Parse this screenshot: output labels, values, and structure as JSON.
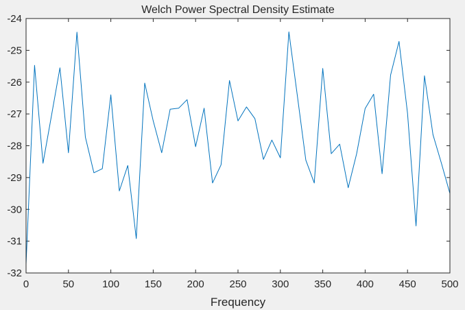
{
  "chart_data": {
    "type": "line",
    "title": "Welch Power Spectral Density Estimate",
    "xlabel": "Frequency",
    "ylabel": "",
    "xlim": [
      0,
      500
    ],
    "ylim": [
      -32,
      -24
    ],
    "xticks": [
      "0",
      "50",
      "100",
      "150",
      "200",
      "250",
      "300",
      "350",
      "400",
      "450",
      "500"
    ],
    "yticks": [
      "-24",
      "-25",
      "-26",
      "-27",
      "-28",
      "-29",
      "-30",
      "-31",
      "-32"
    ],
    "grid": false,
    "line_color": "#0072bd",
    "series": [
      {
        "x": [
          0,
          10,
          20,
          30,
          40,
          50,
          60,
          70,
          80,
          90,
          100,
          110,
          120,
          130,
          140,
          150,
          160,
          170,
          180,
          190,
          200,
          210,
          220,
          230,
          240,
          250,
          260,
          270,
          280,
          290,
          300,
          310,
          320,
          330,
          340,
          350,
          360,
          370,
          380,
          390,
          400,
          410,
          420,
          430,
          440,
          450,
          460,
          470,
          480,
          490,
          500
        ],
        "values": [
          -31.72,
          -25.47,
          -28.55,
          -27.05,
          -25.55,
          -28.22,
          -24.43,
          -27.73,
          -28.85,
          -28.72,
          -26.4,
          -29.42,
          -28.62,
          -30.92,
          -26.03,
          -27.22,
          -28.22,
          -26.85,
          -26.82,
          -26.55,
          -28.03,
          -26.82,
          -29.17,
          -28.6,
          -25.95,
          -27.22,
          -26.78,
          -27.15,
          -28.43,
          -27.82,
          -28.38,
          -24.42,
          -26.42,
          -28.45,
          -29.17,
          -25.57,
          -28.25,
          -27.95,
          -29.32,
          -28.25,
          -26.83,
          -26.38,
          -28.88,
          -25.78,
          -24.72,
          -26.98,
          -30.52,
          -25.8,
          -27.65,
          -28.55,
          -29.5
        ]
      }
    ]
  }
}
